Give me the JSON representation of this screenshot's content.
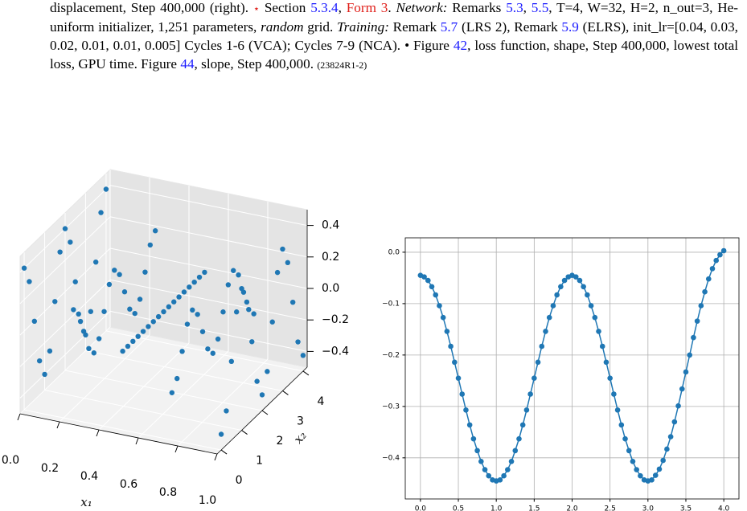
{
  "caption": [
    "displacement, Step 400,000 (right). ",
    "⋆",
    " Section ",
    "5.3.4",
    ", ",
    "Form 3",
    ". ",
    "Network:",
    " Remarks ",
    "5.3",
    ", ",
    "5.5",
    ", T=4, W=32, H=2, n_out=3, He-uniform initializer, 1,251 parameters, ",
    "random",
    " grid. ",
    "Training:",
    " Remark ",
    "5.7",
    " (LRS 2), Remark ",
    "5.9",
    " (ELRS), init_lr=[0.04, 0.03, 0.02, 0.01, 0.01, 0.005] Cycles 1-6 (VCA); Cycles 7-9 (NCA). • Figure ",
    "42",
    ", loss function, shape, Step 400,000, lowest total loss, GPU time. Figure ",
    "44",
    ", slope, Step 400,000. ",
    "(23824R1-2)"
  ],
  "chart_data": [
    {
      "type": "scatter3d",
      "color": "#1f77b4",
      "xlabel": "x₁",
      "ylabel": "x₂",
      "x": [
        0,
        0.25,
        0.5,
        0.75,
        1,
        0,
        0.25,
        0.5,
        0.75,
        1,
        0,
        0.25,
        0.5,
        0.75,
        1,
        0,
        0.25,
        0.5,
        0.75,
        1,
        0,
        0.25,
        0.5,
        0.75,
        1,
        0,
        0.25,
        0.5,
        0.75,
        1,
        0,
        0.25,
        0.5,
        0.75,
        1,
        0,
        0.25,
        0.5,
        0.75,
        1,
        0,
        0.25,
        0.5,
        0.75,
        1,
        0,
        0.25,
        0.5,
        0.75,
        1,
        0,
        0.25,
        0.5,
        0.75,
        1,
        0,
        0.25,
        0.5,
        0.75,
        1,
        0,
        0.25,
        0.5,
        0.75,
        1,
        0,
        0.25,
        0.5,
        0.75,
        1,
        0,
        0.25,
        0.5,
        0.75,
        1,
        0,
        0.25,
        0.5,
        0.75,
        1,
        0,
        0.25,
        0.5,
        0.75,
        1
      ],
      "y": [
        0,
        0,
        0,
        0,
        0,
        0.25,
        0.25,
        0.25,
        0.25,
        0.25,
        0.5,
        0.5,
        0.5,
        0.5,
        0.5,
        0.75,
        0.75,
        0.75,
        0.75,
        0.75,
        1,
        1,
        1,
        1,
        1,
        1.25,
        1.25,
        1.25,
        1.25,
        1.25,
        1.5,
        1.5,
        1.5,
        1.5,
        1.5,
        1.75,
        1.75,
        1.75,
        1.75,
        1.75,
        2,
        2,
        2,
        2,
        2,
        2.25,
        2.25,
        2.25,
        2.25,
        2.25,
        2.5,
        2.5,
        2.5,
        2.5,
        2.5,
        2.75,
        2.75,
        2.75,
        2.75,
        2.75,
        3,
        3,
        3,
        3,
        3,
        3.25,
        3.25,
        3.25,
        3.25,
        3.25,
        3.5,
        3.5,
        3.5,
        3.5,
        3.5,
        3.75,
        3.75,
        3.75,
        3.75,
        3.75,
        4,
        4,
        4,
        4,
        4
      ],
      "z": [
        0.4,
        0.2,
        0,
        -0.2,
        -0.4,
        0.283,
        0.141,
        0,
        -0.141,
        -0.283,
        0,
        0,
        0,
        0,
        0,
        -0.283,
        -0.141,
        0,
        0.141,
        0.283,
        -0.4,
        -0.2,
        0,
        0.2,
        0.4,
        -0.283,
        -0.141,
        0,
        0.141,
        0.283,
        0,
        0,
        0,
        0,
        0,
        0.283,
        0.141,
        0,
        -0.141,
        -0.283,
        0.4,
        0.2,
        0,
        -0.2,
        -0.4,
        0.283,
        0.141,
        0,
        -0.141,
        -0.283,
        0,
        0,
        0,
        0,
        0,
        -0.283,
        -0.141,
        0,
        0.141,
        0.283,
        -0.4,
        -0.2,
        0,
        0.2,
        0.4,
        -0.283,
        -0.141,
        0,
        0.141,
        0.283,
        0,
        0,
        0,
        0,
        0,
        0.283,
        0.141,
        0,
        -0.141,
        -0.283,
        0.4,
        0.2,
        0,
        -0.2,
        -0.4
      ],
      "xlim": [
        0,
        1
      ],
      "ylim": [
        -0.2,
        4.2
      ],
      "zlim": [
        -0.5,
        0.5
      ],
      "xticks": [
        {
          "value": 0,
          "label": "0.0"
        },
        {
          "value": 0.2,
          "label": "0.2"
        },
        {
          "value": 0.4,
          "label": "0.4"
        },
        {
          "value": 0.6,
          "label": "0.6"
        },
        {
          "value": 0.8,
          "label": "0.8"
        },
        {
          "value": 1,
          "label": "1.0"
        }
      ],
      "yticks": [
        0,
        1,
        2,
        3,
        4
      ],
      "zticks": [
        {
          "value": -0.4,
          "label": "−0.4"
        },
        {
          "value": -0.2,
          "label": "−0.2"
        },
        {
          "value": 0,
          "label": "0.0"
        },
        {
          "value": 0.2,
          "label": "0.2"
        },
        {
          "value": 0.4,
          "label": "0.4"
        }
      ],
      "grid": true
    },
    {
      "type": "line",
      "color": "#1f77b4",
      "grid": true,
      "x": [
        0,
        0.05,
        0.1,
        0.15,
        0.2,
        0.25,
        0.3,
        0.35,
        0.4,
        0.45,
        0.5,
        0.55,
        0.6,
        0.65,
        0.7,
        0.75,
        0.8,
        0.85,
        0.9,
        0.95,
        1,
        1.05,
        1.1,
        1.15,
        1.2,
        1.25,
        1.3,
        1.35,
        1.4,
        1.45,
        1.5,
        1.55,
        1.6,
        1.65,
        1.7,
        1.75,
        1.8,
        1.85,
        1.9,
        1.95,
        2,
        2.05,
        2.1,
        2.15,
        2.2,
        2.25,
        2.3,
        2.35,
        2.4,
        2.45,
        2.5,
        2.55,
        2.6,
        2.65,
        2.7,
        2.75,
        2.8,
        2.85,
        2.9,
        2.95,
        3,
        3.05,
        3.1,
        3.15,
        3.2,
        3.25,
        3.3,
        3.35,
        3.4,
        3.45,
        3.5,
        3.55,
        3.6,
        3.65,
        3.7,
        3.75,
        3.8,
        3.85,
        3.9,
        3.95,
        4
      ],
      "values": [
        -0.045,
        -0.048,
        -0.055,
        -0.067,
        -0.083,
        -0.104,
        -0.127,
        -0.154,
        -0.183,
        -0.214,
        -0.245,
        -0.276,
        -0.307,
        -0.336,
        -0.363,
        -0.386,
        -0.407,
        -0.423,
        -0.435,
        -0.443,
        -0.445,
        -0.443,
        -0.435,
        -0.423,
        -0.407,
        -0.386,
        -0.363,
        -0.336,
        -0.307,
        -0.276,
        -0.245,
        -0.214,
        -0.183,
        -0.154,
        -0.127,
        -0.104,
        -0.083,
        -0.067,
        -0.055,
        -0.048,
        -0.045,
        -0.048,
        -0.055,
        -0.067,
        -0.083,
        -0.104,
        -0.127,
        -0.154,
        -0.183,
        -0.214,
        -0.245,
        -0.276,
        -0.307,
        -0.336,
        -0.363,
        -0.386,
        -0.407,
        -0.423,
        -0.435,
        -0.443,
        -0.445,
        -0.443,
        -0.434,
        -0.422,
        -0.405,
        -0.383,
        -0.359,
        -0.33,
        -0.299,
        -0.266,
        -0.233,
        -0.2,
        -0.166,
        -0.134,
        -0.104,
        -0.077,
        -0.052,
        -0.032,
        -0.016,
        -0.005,
        0.003
      ],
      "xlim": [
        -0.2,
        4.2
      ],
      "ylim": [
        -0.48,
        0.028
      ],
      "xticks": [
        {
          "value": 0,
          "label": "0.0"
        },
        {
          "value": 0.5,
          "label": "0.5"
        },
        {
          "value": 1,
          "label": "1.0"
        },
        {
          "value": 1.5,
          "label": "1.5"
        },
        {
          "value": 2,
          "label": "2.0"
        },
        {
          "value": 2.5,
          "label": "2.5"
        },
        {
          "value": 3,
          "label": "3.0"
        },
        {
          "value": 3.5,
          "label": "3.5"
        },
        {
          "value": 4,
          "label": "4.0"
        }
      ],
      "yticks": [
        {
          "value": 0,
          "label": "0.0"
        },
        {
          "value": -0.1,
          "label": "−0.1"
        },
        {
          "value": -0.2,
          "label": "−0.2"
        },
        {
          "value": -0.3,
          "label": "−0.3"
        },
        {
          "value": -0.4,
          "label": "−0.4"
        }
      ]
    }
  ]
}
